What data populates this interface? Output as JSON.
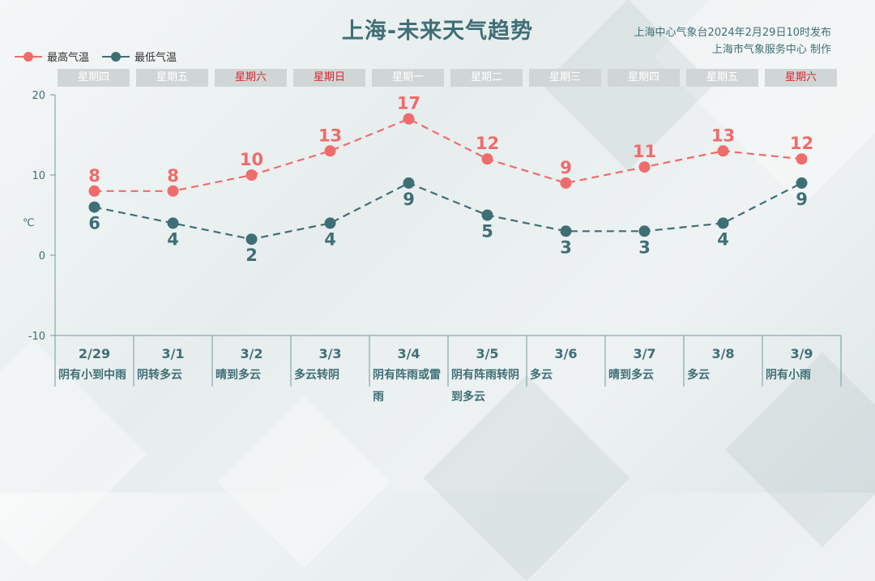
{
  "title": "上海-未来天气趋势",
  "source": {
    "line1": "上海中心气象台2024年2月29日10时发布",
    "line2": "上海市气象服务中心 制作"
  },
  "legend": {
    "high": "最高气温",
    "low": "最低气温"
  },
  "colors": {
    "high": "#f06b6b",
    "low": "#3f6f76",
    "weekend": "#d9262e"
  },
  "y_unit": "℃",
  "days": [
    {
      "weekday": "星期四",
      "weekend": false,
      "date": "2/29",
      "weather": "阴有小到中雨"
    },
    {
      "weekday": "星期五",
      "weekend": false,
      "date": "3/1",
      "weather": "阴转多云"
    },
    {
      "weekday": "星期六",
      "weekend": true,
      "date": "3/2",
      "weather": "晴到多云"
    },
    {
      "weekday": "星期日",
      "weekend": true,
      "date": "3/3",
      "weather": "多云转阴"
    },
    {
      "weekday": "星期一",
      "weekend": false,
      "date": "3/4",
      "weather": "阴有阵雨或雷雨"
    },
    {
      "weekday": "星期二",
      "weekend": false,
      "date": "3/5",
      "weather": "阴有阵雨转阴到多云"
    },
    {
      "weekday": "星期三",
      "weekend": false,
      "date": "3/6",
      "weather": "多云"
    },
    {
      "weekday": "星期四",
      "weekend": false,
      "date": "3/7",
      "weather": "晴到多云"
    },
    {
      "weekday": "星期五",
      "weekend": false,
      "date": "3/8",
      "weather": "多云"
    },
    {
      "weekday": "星期六",
      "weekend": true,
      "date": "3/9",
      "weather": "阴有小雨"
    }
  ],
  "chart_data": {
    "type": "line",
    "x": [
      "2/29",
      "3/1",
      "3/2",
      "3/3",
      "3/4",
      "3/5",
      "3/6",
      "3/7",
      "3/8",
      "3/9"
    ],
    "series": [
      {
        "name": "最高气温",
        "values": [
          8,
          8,
          10,
          13,
          17,
          12,
          9,
          11,
          13,
          12
        ],
        "color": "#f06b6b",
        "line_style": "dashed"
      },
      {
        "name": "最低气温",
        "values": [
          6,
          4,
          2,
          4,
          9,
          5,
          3,
          3,
          4,
          9
        ],
        "color": "#3f6f76",
        "line_style": "dashed"
      }
    ],
    "ylim": [
      -10,
      20
    ],
    "yticks": [
      -10,
      0,
      10,
      20
    ],
    "ylabel": "℃",
    "grid": false,
    "legend": "top-left"
  }
}
